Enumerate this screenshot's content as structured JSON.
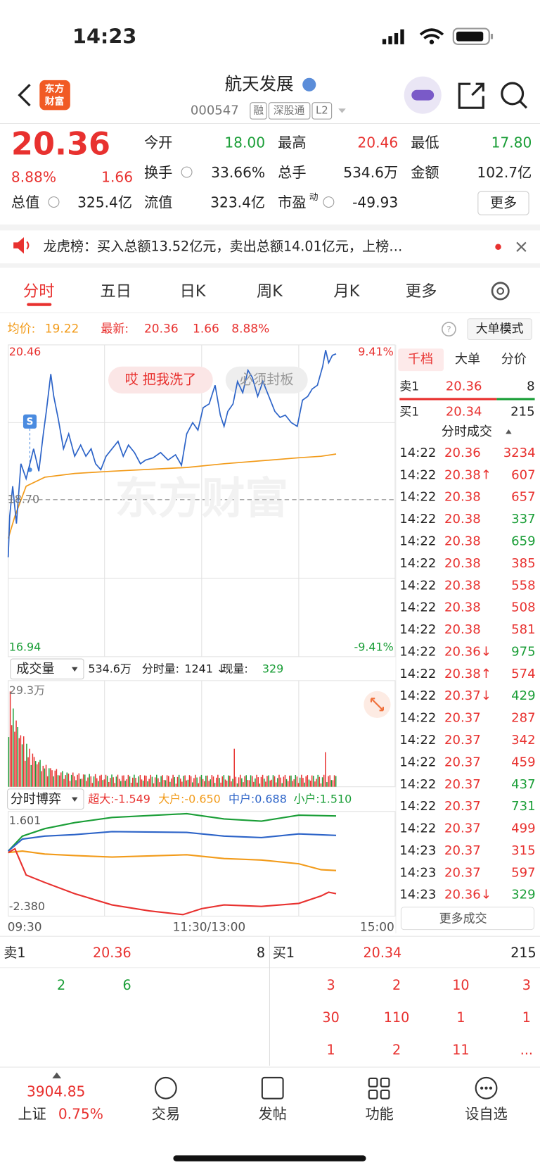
{
  "status": {
    "time": "14:23"
  },
  "header": {
    "logo": [
      "东方",
      "财富"
    ],
    "name": "航天发展",
    "code": "000547",
    "tags": [
      "融",
      "深股通",
      "L2"
    ]
  },
  "quote": {
    "price": "20.36",
    "pct": "8.88%",
    "change": "1.66",
    "fields": [
      {
        "label": "今开",
        "value": "18.00",
        "color": "#1a9e37"
      },
      {
        "label": "最高",
        "value": "20.46",
        "color": "#e8312f"
      },
      {
        "label": "最低",
        "value": "17.80",
        "color": "#1a9e37"
      },
      {
        "label": "换手",
        "value": "33.66%",
        "color": "#222222"
      },
      {
        "label": "总手",
        "value": "534.6万",
        "color": "#222222"
      },
      {
        "label": "金额",
        "value": "102.7亿",
        "color": "#222222"
      },
      {
        "label": "总值",
        "value": "325.4亿",
        "color": "#222222"
      },
      {
        "label": "流值",
        "value": "323.4亿",
        "color": "#222222"
      },
      {
        "label": "市盈",
        "sup": "动",
        "value": "-49.93",
        "color": "#222222"
      }
    ],
    "more": "更多"
  },
  "notice": "龙虎榜：买入总额13.52亿元，卖出总额14.01亿元，上榜…",
  "tabs": [
    "分时",
    "五日",
    "日K",
    "周K",
    "月K",
    "更多"
  ],
  "chart_info": {
    "avg_label": "均价:",
    "avg": "19.22",
    "latest_label": "最新:",
    "latest": "20.36",
    "change": "1.66",
    "pct": "8.88%",
    "mode": "大单模式"
  },
  "chart": {
    "high": "20.46",
    "high_pct": "9.41%",
    "mid": "18.70",
    "low": "16.94",
    "low_pct": "-9.41%",
    "bubbles": [
      "哎 把我洗了",
      "必须封板"
    ],
    "badge": "S",
    "watermark": "东方财富"
  },
  "volume": {
    "label": "成交量",
    "total": "534.6万",
    "minute_label": "分时量:",
    "minute": "1241 ↓",
    "now_label": "现量:",
    "now": "329",
    "max": "29.3万"
  },
  "game": {
    "label": "分时博弈",
    "items": [
      {
        "text": "超大:-1.549",
        "color": "#e8312f"
      },
      {
        "text": "大户:-0.650",
        "color": "#f29b1a"
      },
      {
        "text": "中户:0.688",
        "color": "#2d64c8"
      },
      {
        "text": "小户:1.510",
        "color": "#1a9e37"
      }
    ],
    "top": "1.601",
    "bottom": "-2.380"
  },
  "time_axis": [
    "09:30",
    "11:30/13:00",
    "15:00"
  ],
  "side": {
    "tabs": [
      "千档",
      "大单",
      "分价"
    ],
    "sell": {
      "label": "卖1",
      "price": "20.36",
      "volume": "8"
    },
    "buy": {
      "label": "买1",
      "price": "20.34",
      "volume": "215"
    },
    "title": "分时成交",
    "trades": [
      {
        "time": "14:22",
        "price": "20.36",
        "volume": "3234",
        "color": "#e8312f"
      },
      {
        "time": "14:22",
        "price": "20.38↑",
        "volume": "607",
        "color": "#e8312f"
      },
      {
        "time": "14:22",
        "price": "20.38",
        "volume": "657",
        "color": "#e8312f"
      },
      {
        "time": "14:22",
        "price": "20.38",
        "volume": "337",
        "color": "#1a9e37"
      },
      {
        "time": "14:22",
        "price": "20.38",
        "volume": "659",
        "color": "#1a9e37"
      },
      {
        "time": "14:22",
        "price": "20.38",
        "volume": "385",
        "color": "#e8312f"
      },
      {
        "time": "14:22",
        "price": "20.38",
        "volume": "558",
        "color": "#e8312f"
      },
      {
        "time": "14:22",
        "price": "20.38",
        "volume": "508",
        "color": "#e8312f"
      },
      {
        "time": "14:22",
        "price": "20.38",
        "volume": "581",
        "color": "#e8312f"
      },
      {
        "time": "14:22",
        "price": "20.36↓",
        "volume": "975",
        "color": "#1a9e37"
      },
      {
        "time": "14:22",
        "price": "20.38↑",
        "volume": "574",
        "color": "#e8312f"
      },
      {
        "time": "14:22",
        "price": "20.37↓",
        "volume": "429",
        "color": "#1a9e37"
      },
      {
        "time": "14:22",
        "price": "20.37",
        "volume": "287",
        "color": "#e8312f"
      },
      {
        "time": "14:22",
        "price": "20.37",
        "volume": "342",
        "color": "#e8312f"
      },
      {
        "time": "14:22",
        "price": "20.37",
        "volume": "459",
        "color": "#e8312f"
      },
      {
        "time": "14:22",
        "price": "20.37",
        "volume": "437",
        "color": "#1a9e37"
      },
      {
        "time": "14:22",
        "price": "20.37",
        "volume": "731",
        "color": "#1a9e37"
      },
      {
        "time": "14:22",
        "price": "20.37",
        "volume": "499",
        "color": "#e8312f"
      },
      {
        "time": "14:23",
        "price": "20.37",
        "volume": "315",
        "color": "#e8312f"
      },
      {
        "time": "14:23",
        "price": "20.37",
        "volume": "597",
        "color": "#e8312f"
      },
      {
        "time": "14:23",
        "price": "20.36↓",
        "volume": "329",
        "color": "#1a9e37"
      }
    ],
    "more": "更多成交"
  },
  "queue": {
    "sell": {
      "label": "卖1",
      "price": "20.36",
      "volume": "8"
    },
    "buy": {
      "label": "买1",
      "price": "20.34",
      "volume": "215"
    },
    "sell_rows": [
      [
        "2",
        "6"
      ]
    ],
    "buy_rows": [
      [
        "3",
        "2",
        "10",
        "3"
      ],
      [
        "30",
        "110",
        "1",
        "1"
      ],
      [
        "1",
        "2",
        "11",
        "..."
      ]
    ]
  },
  "bottom_nav": {
    "index": "3904.85",
    "index_name": "上证",
    "index_pct": "0.75%",
    "items": [
      "交易",
      "发帖",
      "功能",
      "设自选"
    ]
  }
}
